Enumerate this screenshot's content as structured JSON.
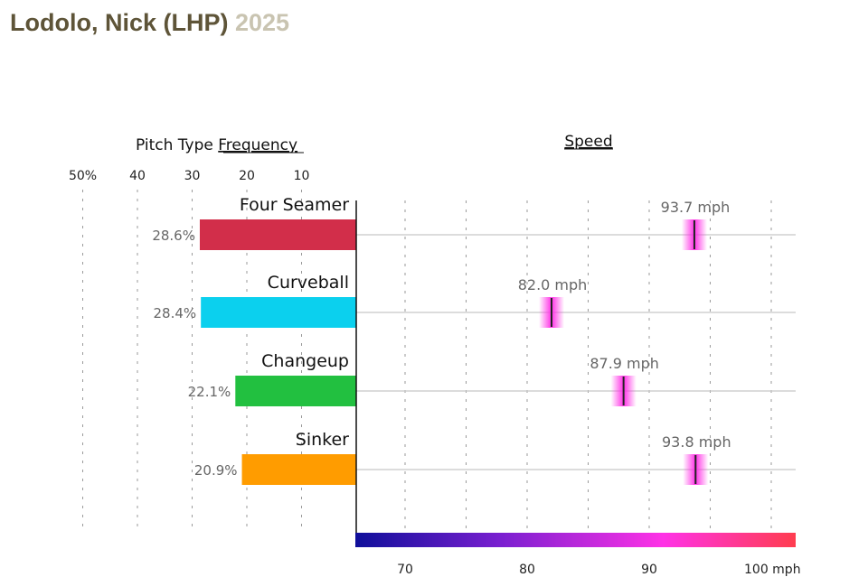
{
  "header": {
    "player": "Lodolo, Nick (LHP)",
    "year": "2025"
  },
  "chart_data": {
    "type": "bar",
    "frequency_panel": {
      "title_prefix": "Pitch Type",
      "title_underlined": "Frequency",
      "tick_labels": [
        "50%",
        "40",
        "30",
        "20",
        "10"
      ],
      "tick_values": [
        50,
        40,
        30,
        20,
        10
      ],
      "xlim": [
        0,
        51
      ]
    },
    "speed_panel": {
      "title": "Speed",
      "tick_labels": [
        "70",
        "80",
        "90",
        "100 mph"
      ],
      "tick_values": [
        70,
        80,
        90,
        100
      ],
      "xlim": [
        66,
        102
      ],
      "color_scale": [
        "#0f0f9a",
        "#7a1fd0",
        "#ff32e6",
        "#ff3d4f"
      ]
    },
    "pitches": [
      {
        "name": "Four Seamer",
        "frequency": 28.6,
        "frequency_label": "28.6%",
        "speed": 93.7,
        "speed_label": "93.7 mph",
        "color": "#d22e4a"
      },
      {
        "name": "Curveball",
        "frequency": 28.4,
        "frequency_label": "28.4%",
        "speed": 82.0,
        "speed_label": "82.0 mph",
        "color": "#0bd0ee"
      },
      {
        "name": "Changeup",
        "frequency": 22.1,
        "frequency_label": "22.1%",
        "speed": 87.9,
        "speed_label": "87.9 mph",
        "color": "#22c040"
      },
      {
        "name": "Sinker",
        "frequency": 20.9,
        "frequency_label": "20.9%",
        "speed": 93.8,
        "speed_label": "93.8 mph",
        "color": "#ff9c00"
      }
    ]
  }
}
